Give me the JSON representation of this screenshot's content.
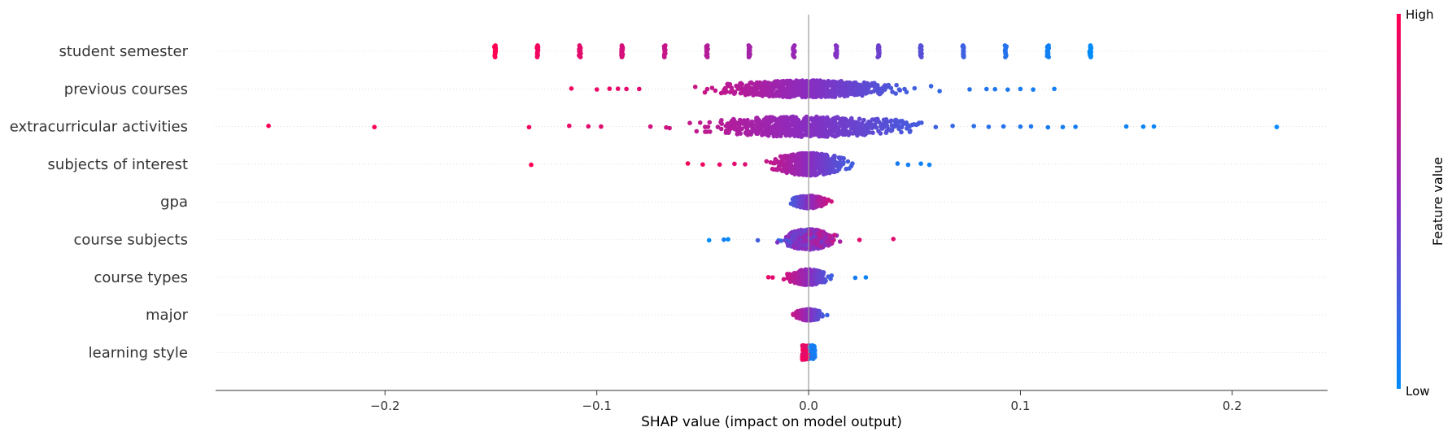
{
  "chart_data": {
    "type": "scatter",
    "subtype": "shap-beeswarm",
    "title": "",
    "xlabel": "SHAP value (impact on model output)",
    "ylabel": "",
    "xlim": [
      -0.28,
      0.245
    ],
    "xticks": [
      -0.2,
      -0.1,
      0.0,
      0.1,
      0.2
    ],
    "xtick_labels": [
      "−0.2",
      "−0.1",
      "0.0",
      "0.1",
      "0.2"
    ],
    "grid": false,
    "zero_line": true,
    "colors": {
      "high": "#ff0052",
      "low": "#008bfb",
      "mid": "#8a2cc0"
    },
    "colorbar": {
      "title": "Feature value",
      "high_label": "High",
      "low_label": "Low"
    },
    "features": [
      {
        "name": "student semester",
        "mode": "discrete",
        "levels": [
          {
            "x": -0.148,
            "v": 1.0
          },
          {
            "x": -0.128,
            "v": 0.94
          },
          {
            "x": -0.108,
            "v": 0.88
          },
          {
            "x": -0.088,
            "v": 0.82
          },
          {
            "x": -0.068,
            "v": 0.75
          },
          {
            "x": -0.048,
            "v": 0.68
          },
          {
            "x": -0.028,
            "v": 0.61
          },
          {
            "x": -0.007,
            "v": 0.55
          },
          {
            "x": 0.013,
            "v": 0.47
          },
          {
            "x": 0.033,
            "v": 0.39
          },
          {
            "x": 0.053,
            "v": 0.31
          },
          {
            "x": 0.073,
            "v": 0.22
          },
          {
            "x": 0.093,
            "v": 0.13
          },
          {
            "x": 0.113,
            "v": 0.06
          },
          {
            "x": 0.133,
            "v": 0.0
          }
        ]
      },
      {
        "name": "previous courses",
        "mode": "spread",
        "core": [
          -0.08,
          0.07
        ],
        "spread": 0.038,
        "thickness": 0.45,
        "hiSide": -1,
        "mixed": false,
        "n": 700,
        "outliers": [
          -0.112,
          -0.1,
          -0.094,
          -0.09,
          -0.086,
          -0.08,
          0.076,
          0.084,
          0.088,
          0.094,
          0.1,
          0.106,
          0.116
        ]
      },
      {
        "name": "extracurricular activities",
        "mode": "spread",
        "core": [
          -0.1,
          0.06
        ],
        "spread": 0.045,
        "thickness": 0.55,
        "hiSide": -1,
        "mixed": false,
        "n": 700,
        "outliers": [
          -0.255,
          -0.205,
          -0.132,
          -0.113,
          -0.104,
          -0.098,
          0.068,
          0.078,
          0.085,
          0.092,
          0.1,
          0.105,
          0.113,
          0.12,
          0.126,
          0.15,
          0.158,
          0.163,
          0.221
        ]
      },
      {
        "name": "subjects of interest",
        "mode": "spread",
        "core": [
          -0.035,
          0.035
        ],
        "spread": 0.016,
        "thickness": 0.6,
        "hiSide": -1,
        "mixed": false,
        "n": 500,
        "outliers": [
          -0.131,
          -0.057,
          -0.05,
          -0.042,
          -0.035,
          -0.03,
          0.042,
          0.047,
          0.053,
          0.057
        ]
      },
      {
        "name": "gpa",
        "mode": "spread",
        "core": [
          -0.012,
          0.012
        ],
        "spread": 0.007,
        "thickness": 0.34,
        "hiSide": 1,
        "mixed": false,
        "n": 300,
        "outliers": []
      },
      {
        "name": "course subjects",
        "mode": "spread",
        "core": [
          -0.025,
          0.03
        ],
        "spread": 0.01,
        "thickness": 0.55,
        "hiSide": 1,
        "mixed": true,
        "n": 450,
        "outliers": [
          -0.047,
          -0.04,
          -0.038,
          -0.024,
          0.024,
          0.04
        ]
      },
      {
        "name": "course types",
        "mode": "spread",
        "core": [
          -0.018,
          0.022
        ],
        "spread": 0.008,
        "thickness": 0.42,
        "hiSide": -1,
        "mixed": false,
        "n": 350,
        "outliers": [
          -0.019,
          -0.017,
          0.022,
          0.027
        ]
      },
      {
        "name": "major",
        "mode": "spread",
        "core": [
          -0.018,
          0.018
        ],
        "spread": 0.006,
        "thickness": 0.3,
        "hiSide": -1,
        "mixed": false,
        "n": 300,
        "outliers": []
      },
      {
        "name": "learning style",
        "mode": "column",
        "core": [
          -0.003,
          0.003
        ],
        "thickness": 0.38,
        "hiSide": -1,
        "mixed": false,
        "n": 200,
        "outliers": []
      }
    ]
  }
}
